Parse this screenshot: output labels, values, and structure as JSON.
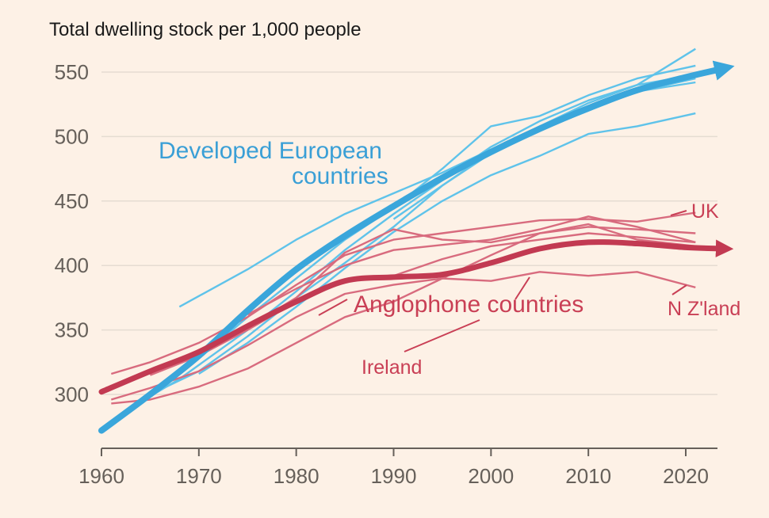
{
  "chart_data": {
    "type": "line",
    "title": "Total dwelling stock per 1,000 people",
    "xlabel": "",
    "ylabel": "",
    "xlim": [
      1960,
      2025
    ],
    "ylim": [
      265,
      575
    ],
    "xticks": [
      1960,
      1970,
      1980,
      1990,
      2000,
      2010,
      2020
    ],
    "xtick_labels": [
      "1960",
      "1970",
      "1980",
      "1990",
      "2000",
      "2010",
      "2020"
    ],
    "yticks": [
      300,
      350,
      400,
      450,
      500,
      550
    ],
    "ytick_labels": [
      "300",
      "350",
      "400",
      "450",
      "500",
      "550"
    ],
    "trend_series": [
      {
        "name": "Developed European countries",
        "color": "#3aa6db",
        "x": [
          1960,
          1965,
          1970,
          1975,
          1980,
          1985,
          1990,
          1995,
          2000,
          2005,
          2010,
          2015,
          2020,
          2024
        ],
        "y": [
          272,
          300,
          330,
          365,
          397,
          423,
          446,
          468,
          488,
          506,
          522,
          536,
          546,
          553
        ]
      },
      {
        "name": "Anglophone countries",
        "color": "#c23a52",
        "x": [
          1960,
          1965,
          1970,
          1975,
          1980,
          1985,
          1990,
          1995,
          2000,
          2005,
          2010,
          2015,
          2020,
          2024
        ],
        "y": [
          302,
          318,
          333,
          353,
          372,
          388,
          391,
          393,
          402,
          413,
          418,
          417,
          414,
          413
        ]
      }
    ],
    "country_series": [
      {
        "group": "europe",
        "x": [
          1968,
          1975,
          1980,
          1985,
          1990,
          1995,
          2000,
          2005,
          2010,
          2015,
          2021
        ],
        "y": [
          368,
          397,
          420,
          440,
          456,
          472,
          490,
          508,
          526,
          540,
          568
        ]
      },
      {
        "group": "europe",
        "x": [
          1961,
          1965,
          1970,
          1975,
          1980,
          1985,
          1990,
          1995,
          2000,
          2005,
          2010,
          2015,
          2021
        ],
        "y": [
          278,
          302,
          328,
          360,
          390,
          420,
          445,
          475,
          508,
          516,
          532,
          545,
          555
        ]
      },
      {
        "group": "europe",
        "x": [
          1962,
          1968,
          1975,
          1980,
          1985,
          1990,
          1995,
          2000,
          2005,
          2010,
          2015,
          2021
        ],
        "y": [
          285,
          312,
          350,
          380,
          412,
          440,
          466,
          492,
          512,
          528,
          540,
          548
        ]
      },
      {
        "group": "europe",
        "x": [
          1965,
          1970,
          1975,
          1980,
          1985,
          1990,
          1995,
          2000,
          2005,
          2010,
          2015,
          2021
        ],
        "y": [
          300,
          318,
          345,
          375,
          402,
          430,
          462,
          488,
          508,
          522,
          535,
          542
        ]
      },
      {
        "group": "europe",
        "x": [
          1970,
          1975,
          1980,
          1985,
          1990,
          1995,
          2000,
          2005,
          2010,
          2015,
          2021
        ],
        "y": [
          316,
          340,
          368,
          398,
          426,
          450,
          470,
          485,
          502,
          508,
          518
        ]
      },
      {
        "group": "europe",
        "x": [
          1990,
          1995,
          2000,
          2005,
          2010,
          2015,
          2021
        ],
        "y": [
          436,
          462,
          487,
          505,
          520,
          535,
          545
        ]
      },
      {
        "group": "anglophone",
        "name": "UK",
        "x": [
          1961,
          1965,
          1970,
          1975,
          1980,
          1985,
          1990,
          1995,
          2000,
          2005,
          2010,
          2015,
          2021
        ],
        "y": [
          316,
          325,
          340,
          360,
          385,
          408,
          420,
          425,
          430,
          435,
          436,
          434,
          441
        ]
      },
      {
        "group": "anglophone",
        "x": [
          1961,
          1965,
          1970,
          1975,
          1980,
          1985,
          1990,
          1995,
          2000,
          2005,
          2010,
          2015,
          2021
        ],
        "y": [
          306,
          318,
          330,
          352,
          375,
          410,
          428,
          420,
          418,
          425,
          430,
          428,
          425
        ]
      },
      {
        "group": "anglophone",
        "name": "N Z'land",
        "x": [
          1961,
          1965,
          1970,
          1975,
          1980,
          1985,
          1990,
          1995,
          2000,
          2005,
          2010,
          2015,
          2021
        ],
        "y": [
          296,
          305,
          318,
          338,
          360,
          378,
          385,
          390,
          388,
          395,
          392,
          395,
          383
        ]
      },
      {
        "group": "anglophone",
        "name": "Ireland",
        "x": [
          1961,
          1965,
          1970,
          1975,
          1980,
          1985,
          1990,
          1995,
          2000,
          2005,
          2010,
          2015,
          2021
        ],
        "y": [
          293,
          296,
          306,
          320,
          340,
          360,
          372,
          390,
          408,
          425,
          432,
          420,
          415
        ]
      },
      {
        "group": "anglophone",
        "x": [
          1965,
          1970,
          1975,
          1980,
          1985,
          1990,
          1995,
          2000,
          2005,
          2010,
          2015,
          2021
        ],
        "y": [
          315,
          330,
          350,
          372,
          388,
          392,
          405,
          415,
          420,
          425,
          422,
          418
        ]
      },
      {
        "group": "anglophone",
        "x": [
          1975,
          1980,
          1985,
          1990,
          1995,
          2000,
          2005,
          2010,
          2015,
          2021
        ],
        "y": [
          362,
          382,
          400,
          412,
          416,
          420,
          428,
          438,
          430,
          418
        ]
      }
    ],
    "annotations": [
      {
        "text_lines": [
          "Developed European",
          "countries"
        ],
        "color": "#3a9fd6"
      },
      {
        "text": "Anglophone countries",
        "color": "#c93f55"
      },
      {
        "text": "UK",
        "color": "#c93f55"
      },
      {
        "text": "N Z'land",
        "color": "#c93f55"
      },
      {
        "text": "Ireland",
        "color": "#c93f55"
      }
    ]
  }
}
